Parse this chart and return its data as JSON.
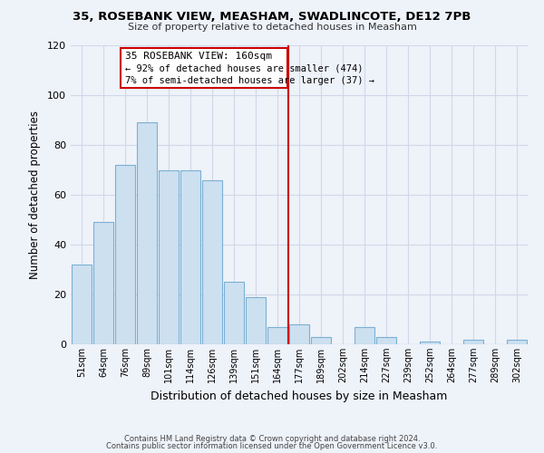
{
  "title1": "35, ROSEBANK VIEW, MEASHAM, SWADLINCOTE, DE12 7PB",
  "title2": "Size of property relative to detached houses in Measham",
  "xlabel": "Distribution of detached houses by size in Measham",
  "ylabel": "Number of detached properties",
  "bar_labels": [
    "51sqm",
    "64sqm",
    "76sqm",
    "89sqm",
    "101sqm",
    "114sqm",
    "126sqm",
    "139sqm",
    "151sqm",
    "164sqm",
    "177sqm",
    "189sqm",
    "202sqm",
    "214sqm",
    "227sqm",
    "239sqm",
    "252sqm",
    "264sqm",
    "277sqm",
    "289sqm",
    "302sqm"
  ],
  "bar_values": [
    32,
    49,
    72,
    89,
    70,
    70,
    66,
    25,
    19,
    7,
    8,
    3,
    0,
    7,
    3,
    0,
    1,
    0,
    2,
    0,
    2
  ],
  "bar_color": "#cce0f0",
  "bar_edge_color": "#7ab0d4",
  "vline_x": 9.5,
  "vline_color": "#cc0000",
  "annotation_title": "35 ROSEBANK VIEW: 160sqm",
  "annotation_line1": "← 92% of detached houses are smaller (474)",
  "annotation_line2": "7% of semi-detached houses are larger (37) →",
  "annotation_box_color": "#ffffff",
  "annotation_box_edge": "#cc0000",
  "ylim": [
    0,
    120
  ],
  "yticks": [
    0,
    20,
    40,
    60,
    80,
    100,
    120
  ],
  "footer1": "Contains HM Land Registry data © Crown copyright and database right 2024.",
  "footer2": "Contains public sector information licensed under the Open Government Licence v3.0.",
  "bg_color": "#eef2f9",
  "grid_color": "#d0d8e8"
}
